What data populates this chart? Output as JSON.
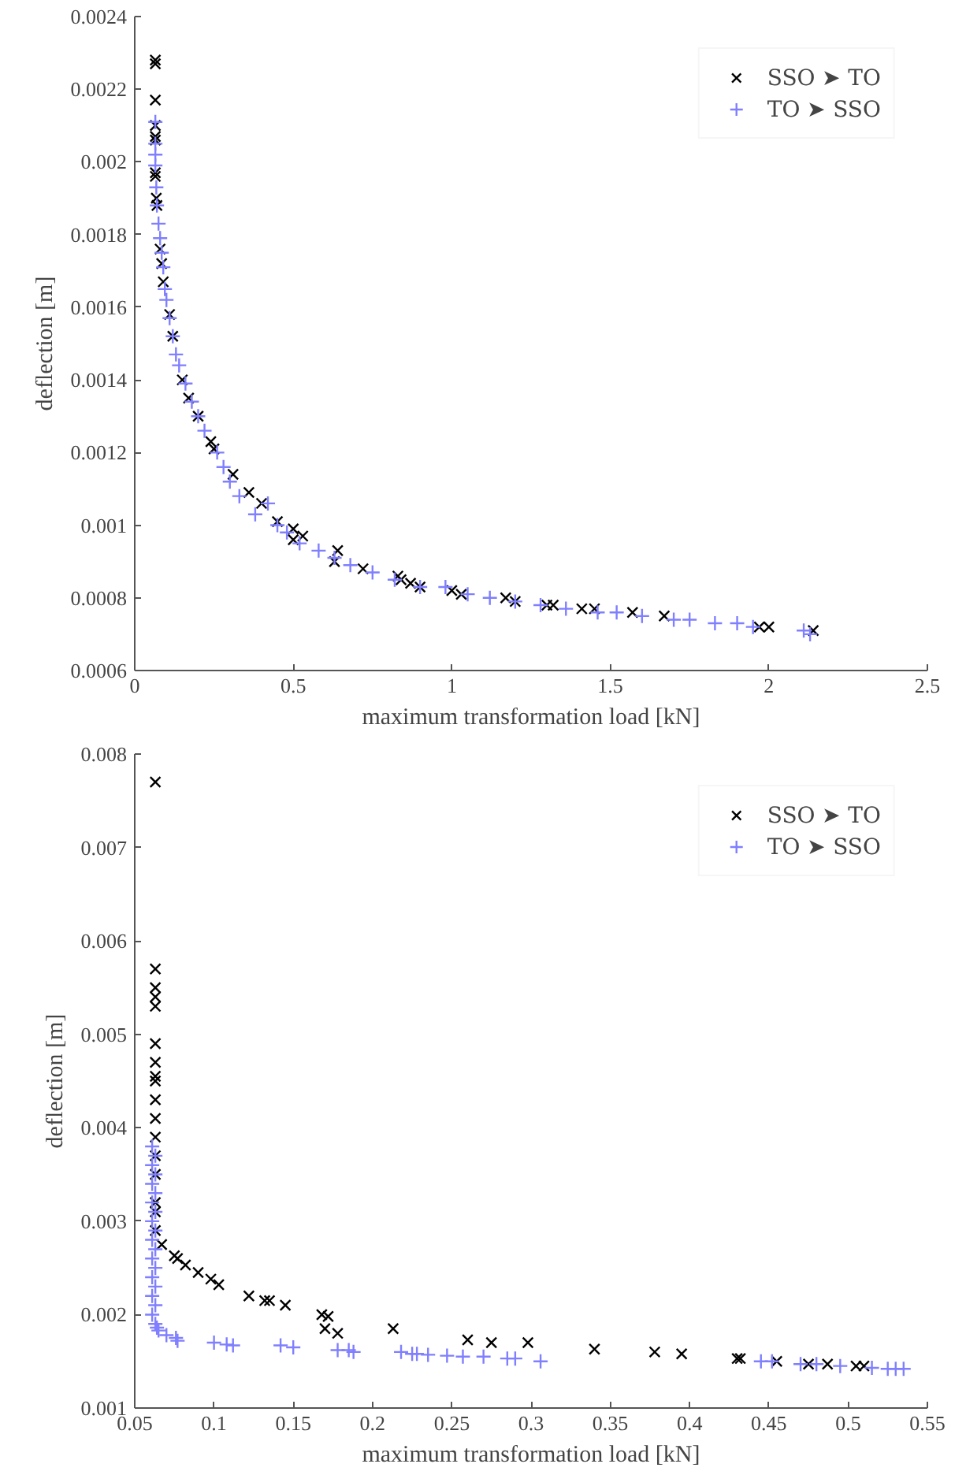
{
  "chart_data": [
    {
      "type": "scatter",
      "xlabel": "maximum transformation load [kN]",
      "ylabel": "deflection [m]",
      "xlim": [
        0,
        2.5
      ],
      "xticks": [
        0,
        0.5,
        1,
        1.5,
        2,
        2.5
      ],
      "ylim": [
        0.0006,
        0.0024
      ],
      "yticks": [
        0.0006,
        0.0008,
        0.001,
        0.0012,
        0.0014,
        0.0016,
        0.0018,
        0.002,
        0.0022,
        0.0024
      ],
      "grid": false,
      "legend": "top right",
      "series": [
        {
          "name": "SSO ➤ TO",
          "color": "#000000",
          "marker": "x",
          "x": [
            0.065,
            0.065,
            0.065,
            0.065,
            0.065,
            0.065,
            0.065,
            0.065,
            0.068,
            0.07,
            0.08,
            0.085,
            0.09,
            0.11,
            0.12,
            0.15,
            0.17,
            0.2,
            0.24,
            0.25,
            0.31,
            0.36,
            0.4,
            0.45,
            0.5,
            0.53,
            0.5,
            0.64,
            0.63,
            0.72,
            0.83,
            0.84,
            0.87,
            0.9,
            1.0,
            1.03,
            1.17,
            1.2,
            1.3,
            1.32,
            1.41,
            1.45,
            1.57,
            1.67,
            1.97,
            2.0,
            2.14
          ],
          "values": [
            0.00228,
            0.00227,
            0.00217,
            0.0021,
            0.00207,
            0.00206,
            0.00197,
            0.00196,
            0.0019,
            0.00188,
            0.00176,
            0.00172,
            0.00167,
            0.00158,
            0.00152,
            0.0014,
            0.00135,
            0.0013,
            0.00123,
            0.00121,
            0.00114,
            0.00109,
            0.00106,
            0.00101,
            0.00099,
            0.00097,
            0.00096,
            0.00093,
            0.0009,
            0.00088,
            0.00086,
            0.00085,
            0.00084,
            0.00083,
            0.00082,
            0.00081,
            0.0008,
            0.00079,
            0.00078,
            0.00078,
            0.00077,
            0.00077,
            0.00076,
            0.00075,
            0.00072,
            0.00072,
            0.00071
          ]
        },
        {
          "name": "TO ➤ SSO",
          "color": "#7f7fff",
          "marker": "cross",
          "x": [
            0.065,
            0.065,
            0.065,
            0.065,
            0.068,
            0.07,
            0.075,
            0.08,
            0.085,
            0.09,
            0.095,
            0.1,
            0.11,
            0.12,
            0.13,
            0.14,
            0.16,
            0.18,
            0.2,
            0.22,
            0.26,
            0.28,
            0.3,
            0.33,
            0.38,
            0.42,
            0.45,
            0.48,
            0.52,
            0.58,
            0.63,
            0.68,
            0.75,
            0.82,
            0.9,
            0.98,
            1.05,
            1.12,
            1.2,
            1.28,
            1.36,
            1.46,
            1.52,
            1.6,
            1.7,
            1.75,
            1.83,
            1.9,
            1.95,
            2.11,
            2.13
          ],
          "values": [
            0.00211,
            0.00205,
            0.00202,
            0.00199,
            0.00193,
            0.00188,
            0.00183,
            0.00179,
            0.00175,
            0.00171,
            0.00165,
            0.00162,
            0.00157,
            0.00152,
            0.00147,
            0.00144,
            0.00139,
            0.00134,
            0.0013,
            0.00126,
            0.0012,
            0.00116,
            0.00112,
            0.00108,
            0.00103,
            0.00106,
            0.001,
            0.00098,
            0.00095,
            0.00093,
            0.00091,
            0.00089,
            0.00087,
            0.00085,
            0.00083,
            0.00083,
            0.00081,
            0.0008,
            0.00079,
            0.00078,
            0.00077,
            0.00076,
            0.00076,
            0.00075,
            0.00074,
            0.00074,
            0.00073,
            0.00073,
            0.00072,
            0.00071,
            0.0007
          ]
        }
      ]
    },
    {
      "type": "scatter",
      "xlabel": "maximum transformation load [kN]",
      "ylabel": "deflection [m]",
      "xlim": [
        0.05,
        0.55
      ],
      "xticks": [
        0.05,
        0.1,
        0.15,
        0.2,
        0.25,
        0.3,
        0.35,
        0.4,
        0.45,
        0.5,
        0.55
      ],
      "ylim": [
        0.001,
        0.008
      ],
      "yticks": [
        0.001,
        0.002,
        0.003,
        0.004,
        0.005,
        0.006,
        0.007,
        0.008
      ],
      "grid": false,
      "legend": "top right",
      "series": [
        {
          "name": "SSO ➤ TO",
          "color": "#000000",
          "marker": "x",
          "x": [
            0.063,
            0.063,
            0.063,
            0.063,
            0.063,
            0.063,
            0.063,
            0.063,
            0.063,
            0.063,
            0.063,
            0.063,
            0.063,
            0.063,
            0.063,
            0.063,
            0.063,
            0.067,
            0.075,
            0.077,
            0.082,
            0.09,
            0.098,
            0.103,
            0.122,
            0.132,
            0.135,
            0.145,
            0.168,
            0.172,
            0.17,
            0.178,
            0.213,
            0.26,
            0.275,
            0.298,
            0.34,
            0.378,
            0.395,
            0.43,
            0.432,
            0.455,
            0.475,
            0.487,
            0.505,
            0.51
          ],
          "values": [
            0.0077,
            0.0057,
            0.0055,
            0.0054,
            0.0053,
            0.0049,
            0.0047,
            0.00455,
            0.0045,
            0.0043,
            0.0041,
            0.0039,
            0.0037,
            0.0035,
            0.0032,
            0.0031,
            0.0029,
            0.00275,
            0.00263,
            0.0026,
            0.00253,
            0.00245,
            0.00238,
            0.00232,
            0.0022,
            0.00215,
            0.00215,
            0.0021,
            0.002,
            0.00198,
            0.00185,
            0.0018,
            0.00185,
            0.00173,
            0.0017,
            0.0017,
            0.00163,
            0.0016,
            0.00158,
            0.00153,
            0.00153,
            0.0015,
            0.00147,
            0.00147,
            0.00145,
            0.00145
          ]
        },
        {
          "name": "TO ➤ SSO",
          "color": "#7f7fff",
          "marker": "cross",
          "x": [
            0.061,
            0.063,
            0.061,
            0.063,
            0.061,
            0.063,
            0.061,
            0.063,
            0.061,
            0.063,
            0.061,
            0.063,
            0.061,
            0.063,
            0.061,
            0.063,
            0.061,
            0.063,
            0.061,
            0.063,
            0.064,
            0.065,
            0.07,
            0.076,
            0.077,
            0.1,
            0.108,
            0.112,
            0.142,
            0.15,
            0.178,
            0.185,
            0.188,
            0.218,
            0.225,
            0.228,
            0.235,
            0.247,
            0.257,
            0.27,
            0.285,
            0.29,
            0.306,
            0.445,
            0.452,
            0.47,
            0.48,
            0.495,
            0.515,
            0.525,
            0.53,
            0.535
          ],
          "values": [
            0.0038,
            0.0037,
            0.0036,
            0.0035,
            0.0034,
            0.0033,
            0.0032,
            0.0031,
            0.003,
            0.0029,
            0.0028,
            0.0027,
            0.0026,
            0.0025,
            0.0024,
            0.0023,
            0.0022,
            0.0021,
            0.002,
            0.0019,
            0.00186,
            0.00183,
            0.00178,
            0.00175,
            0.00172,
            0.0017,
            0.00168,
            0.00167,
            0.00167,
            0.00165,
            0.00162,
            0.00162,
            0.0016,
            0.0016,
            0.00158,
            0.00158,
            0.00157,
            0.00156,
            0.00155,
            0.00155,
            0.00153,
            0.00153,
            0.0015,
            0.0015,
            0.0015,
            0.00147,
            0.00147,
            0.00145,
            0.00143,
            0.00142,
            0.00142,
            0.00142
          ]
        }
      ]
    }
  ]
}
